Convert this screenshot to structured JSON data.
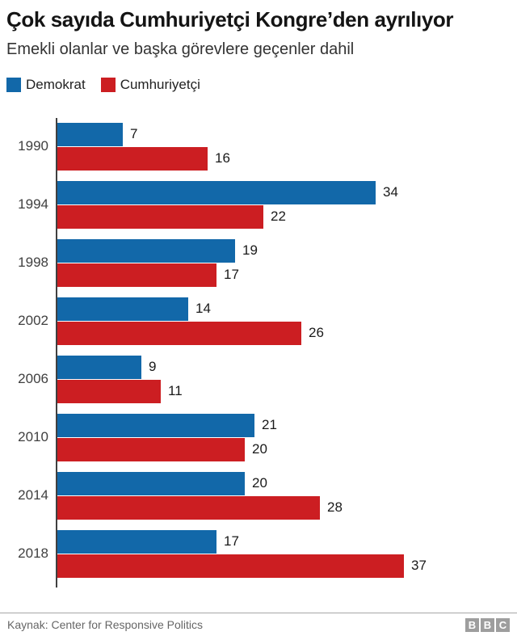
{
  "chart_data": {
    "type": "bar",
    "orientation": "horizontal",
    "title": "Çok sayıda Cumhuriyetçi Kongre’den ayrılıyor",
    "subtitle": "Emekli olanlar ve başka görevlere geçenler dahil",
    "categories": [
      "1990",
      "1994",
      "1998",
      "2002",
      "2006",
      "2010",
      "2014",
      "2018"
    ],
    "series": [
      {
        "name": "Demokrat",
        "key": "demokrat",
        "color": "#1268a9",
        "values": [
          7,
          34,
          19,
          14,
          9,
          21,
          20,
          17
        ]
      },
      {
        "name": "Cumhuriyetçi",
        "key": "cumhuriyetci",
        "color": "#cc1e22",
        "values": [
          16,
          22,
          17,
          26,
          11,
          20,
          28,
          37
        ]
      }
    ],
    "xlim": [
      0,
      40
    ],
    "value_labels_shown": true,
    "grid": "off",
    "legend_position": "top-left"
  },
  "legend": [
    {
      "label": "Demokrat",
      "color": "#1268a9"
    },
    {
      "label": "Cumhuriyetçi",
      "color": "#cc1e22"
    }
  ],
  "footer": {
    "source": "Kaynak: Center for Responsive Politics",
    "logo_letters": [
      "B",
      "B",
      "C"
    ],
    "logo_color": "#9e9e9e"
  }
}
